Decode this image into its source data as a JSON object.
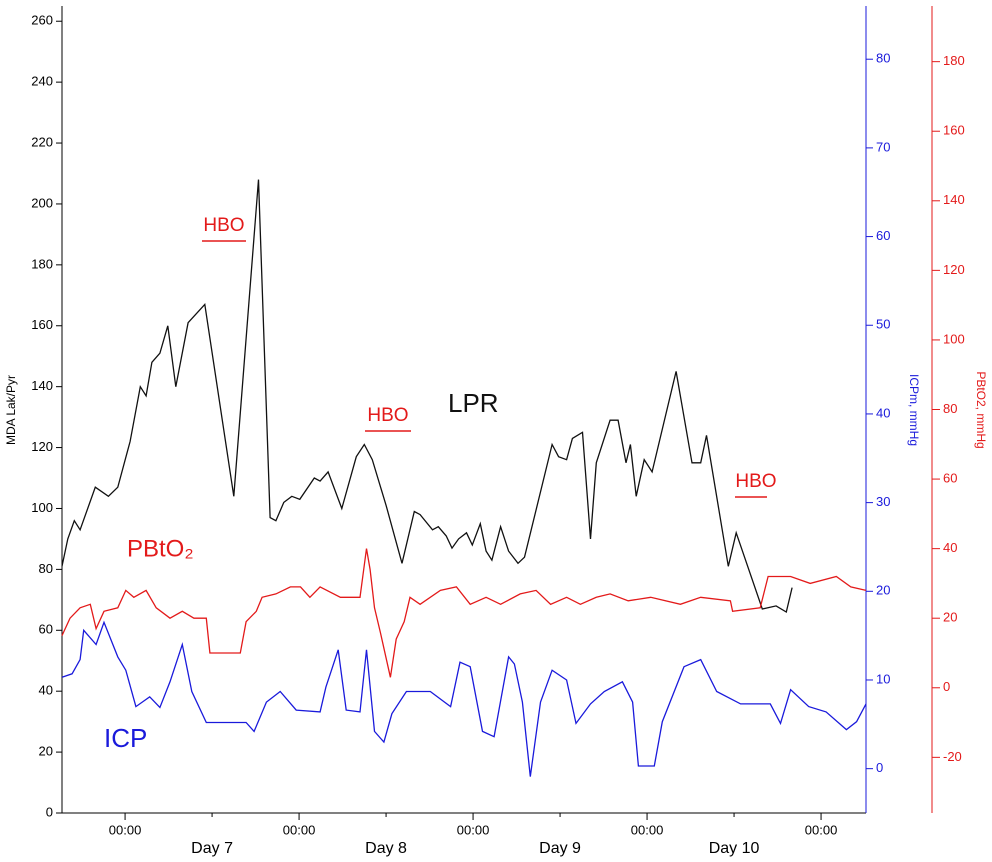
{
  "chart_data": {
    "type": "line",
    "ylabel": "MDA Lak/Pyr",
    "y2label": "ICPm, mmHg",
    "y3label": "PBtO2, mmHg",
    "xlim": [
      -8.7,
      102.2
    ],
    "xticks": [
      {
        "value": 0,
        "label": "00:00"
      },
      {
        "value": 24,
        "label": "00:00"
      },
      {
        "value": 48,
        "label": "00:00"
      },
      {
        "value": 72,
        "label": "00:00"
      },
      {
        "value": 96,
        "label": "00:00"
      }
    ],
    "day_ticks": [
      {
        "value": 12,
        "label": "Day 7"
      },
      {
        "value": 36,
        "label": "Day 8"
      },
      {
        "value": 60,
        "label": "Day 9"
      },
      {
        "value": 84,
        "label": "Day 10"
      }
    ],
    "ylim": [
      0,
      265
    ],
    "yticks": [
      0,
      20,
      40,
      60,
      80,
      100,
      120,
      140,
      160,
      180,
      200,
      220,
      240,
      260
    ],
    "y2lim": [
      -5,
      86
    ],
    "y2ticks": [
      0,
      10,
      20,
      30,
      40,
      50,
      60,
      70,
      80
    ],
    "y2color": "#1a1adb",
    "y3lim": [
      -36,
      196
    ],
    "y3ticks": [
      -20,
      0,
      20,
      40,
      60,
      80,
      100,
      120,
      140,
      160,
      180
    ],
    "y3color": "#e31a1a",
    "annotations": [
      "HBO",
      "HBO",
      "HBO"
    ],
    "series": [
      {
        "name": "LPR",
        "color": "#111111",
        "axis": "y",
        "x": [
          -8.7,
          -7.9,
          -7.0,
          -6.2,
          -4.1,
          -2.3,
          -1.0,
          0.7,
          2.1,
          2.9,
          3.7,
          4.8,
          5.9,
          7.0,
          8.7,
          11.0,
          15.0,
          18.4,
          20.0,
          20.8,
          21.9,
          23.0,
          24.1,
          26.1,
          26.9,
          28.0,
          29.9,
          31.9,
          33.0,
          34.1,
          36.0,
          38.2,
          39.9,
          40.7,
          42.4,
          43.2,
          44.3,
          45.1,
          46.0,
          47.1,
          47.9,
          49.0,
          49.8,
          50.6,
          51.8,
          52.9,
          54.2,
          55.1,
          58.9,
          59.8,
          60.9,
          61.7,
          63.1,
          64.2,
          65.0,
          66.9,
          68.0,
          69.1,
          69.7,
          70.5,
          71.6,
          72.7,
          76.0,
          78.2,
          79.4,
          80.2,
          83.2,
          84.3,
          87.9,
          89.8,
          91.2,
          92.0
        ],
        "values": [
          81,
          90,
          96,
          93,
          107,
          104,
          107,
          122,
          140,
          137,
          148,
          151,
          160,
          140,
          161,
          167,
          104,
          208,
          97,
          96,
          102,
          104,
          103,
          110,
          109,
          112,
          100,
          117,
          121,
          116,
          101,
          82,
          99,
          98,
          93,
          94,
          91,
          87,
          90,
          92,
          88,
          95,
          86,
          83,
          94,
          86,
          82,
          84,
          121,
          117,
          116,
          123,
          125,
          90,
          115,
          129,
          129,
          115,
          121,
          104,
          116,
          112,
          145,
          115,
          115,
          124,
          81,
          92,
          67,
          68,
          66,
          74
        ]
      },
      {
        "name": "PBtO₂",
        "color": "#e31a1a",
        "axis": "y3",
        "x": [
          -8.7,
          -7.6,
          -6.2,
          -4.8,
          -4.0,
          -2.9,
          -1.0,
          0.1,
          1.2,
          2.9,
          4.3,
          6.2,
          7.9,
          9.5,
          11.2,
          11.7,
          15.9,
          16.7,
          18.1,
          18.9,
          20.8,
          22.8,
          24.2,
          25.5,
          26.9,
          29.7,
          32.4,
          33.3,
          33.8,
          34.4,
          35.2,
          36.6,
          37.4,
          38.5,
          39.3,
          40.7,
          43.5,
          45.7,
          47.6,
          49.8,
          51.8,
          54.5,
          56.7,
          58.7,
          60.9,
          62.8,
          65.0,
          66.9,
          69.4,
          72.5,
          76.6,
          79.4,
          83.5,
          83.8,
          87.6,
          88.7,
          91.8,
          94.5,
          98.1,
          100.1,
          102.2
        ],
        "values": [
          15,
          20,
          23,
          24,
          17,
          22,
          23,
          28,
          26,
          28,
          23,
          20,
          22,
          20,
          20,
          10,
          10,
          19,
          22,
          26,
          27,
          29,
          29,
          26,
          29,
          26,
          26,
          40,
          34,
          23,
          16,
          3,
          14,
          19,
          26,
          24,
          28,
          29,
          24,
          26,
          24,
          27,
          28,
          24,
          26,
          24,
          26,
          27,
          25,
          26,
          24,
          26,
          25,
          22,
          23,
          32,
          32,
          30,
          32,
          29,
          28
        ]
      },
      {
        "name": "ICP",
        "color": "#1a1adb",
        "axis": "y2",
        "x": [
          -8.7,
          -7.3,
          -6.2,
          -5.7,
          -4.0,
          -2.9,
          -1.0,
          0.1,
          1.5,
          3.4,
          4.8,
          6.2,
          7.9,
          9.2,
          11.2,
          16.7,
          17.8,
          19.5,
          21.4,
          23.6,
          26.9,
          27.7,
          29.4,
          30.5,
          32.4,
          33.3,
          34.4,
          35.7,
          36.8,
          38.8,
          42.1,
          44.9,
          46.2,
          47.6,
          49.3,
          50.9,
          52.9,
          53.7,
          54.8,
          55.9,
          57.3,
          58.9,
          60.9,
          62.2,
          64.2,
          66.1,
          68.6,
          70.0,
          70.8,
          73.0,
          74.1,
          77.1,
          79.4,
          81.6,
          84.9,
          89.0,
          90.4,
          91.8,
          94.3,
          96.7,
          99.5,
          100.9,
          102.2
        ],
        "values": [
          10.3,
          10.7,
          12.3,
          15.6,
          14,
          16.5,
          12.6,
          11.1,
          7,
          8.1,
          6.9,
          9.8,
          14,
          8.7,
          5.2,
          5.2,
          4.2,
          7.5,
          8.7,
          6.6,
          6.4,
          9.2,
          13.4,
          6.6,
          6.4,
          13.4,
          4.2,
          3,
          6.2,
          8.7,
          8.7,
          7,
          12,
          11.5,
          4.2,
          3.6,
          12.6,
          11.8,
          7.5,
          -0.9,
          7.5,
          11.1,
          10,
          5.1,
          7.3,
          8.7,
          9.8,
          7.5,
          0.3,
          0.3,
          5.3,
          11.5,
          12.3,
          8.7,
          7.3,
          7.3,
          5.1,
          8.9,
          7,
          6.4,
          4.4,
          5.3,
          7.3
        ]
      }
    ]
  }
}
